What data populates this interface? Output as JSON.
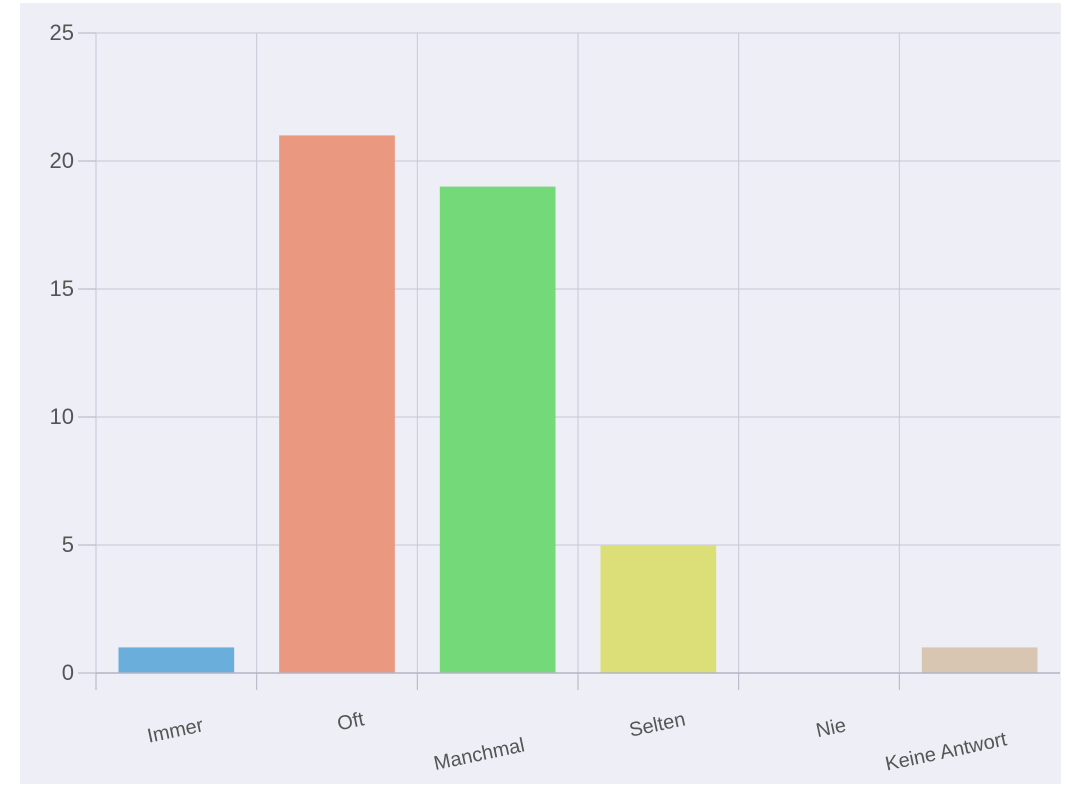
{
  "chart_data": {
    "type": "bar",
    "categories": [
      "Immer",
      "Oft",
      "Manchmal",
      "Selten",
      "Nie",
      "Keine Antwort"
    ],
    "values": [
      1,
      21,
      19,
      5,
      0,
      1
    ],
    "colors": [
      "#6aaedc",
      "#ea9880",
      "#74da79",
      "#dcdf78",
      "#b8b8b8",
      "#d8c6b2"
    ],
    "ylim": [
      0,
      25
    ],
    "yticks": [
      0,
      5,
      10,
      15,
      20,
      25
    ],
    "grid": true,
    "title": "",
    "xlabel": "",
    "ylabel": ""
  }
}
